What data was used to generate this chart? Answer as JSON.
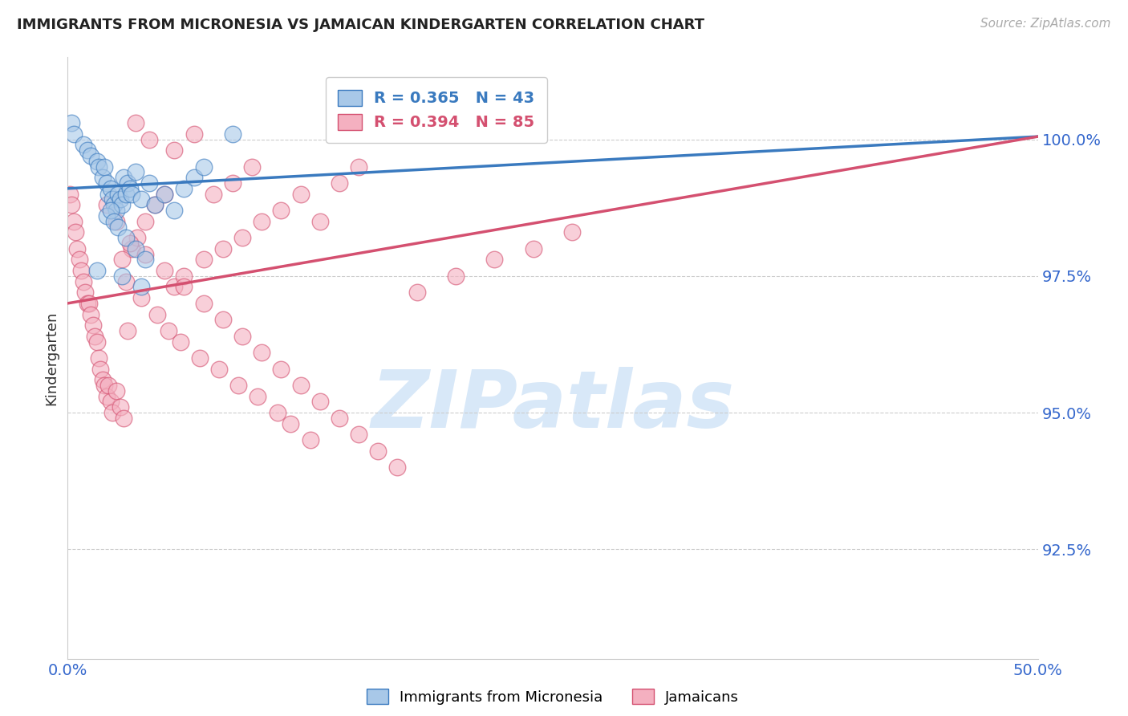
{
  "title": "IMMIGRANTS FROM MICRONESIA VS JAMAICAN KINDERGARTEN CORRELATION CHART",
  "source_text": "Source: ZipAtlas.com",
  "xlabel_blue": "Immigrants from Micronesia",
  "xlabel_pink": "Jamaicans",
  "ylabel": "Kindergarten",
  "xmin": 0.0,
  "xmax": 50.0,
  "ymin": 90.5,
  "ymax": 101.5,
  "yticks": [
    92.5,
    95.0,
    97.5,
    100.0
  ],
  "ytick_labels": [
    "92.5%",
    "95.0%",
    "97.5%",
    "100.0%"
  ],
  "xtick_labels": [
    "0.0%",
    "50.0%"
  ],
  "R_blue": 0.365,
  "N_blue": 43,
  "R_pink": 0.394,
  "N_pink": 85,
  "color_blue": "#a8c8e8",
  "color_pink": "#f4b0c0",
  "line_color_blue": "#3a7abf",
  "line_color_pink": "#d45070",
  "watermark_text": "ZIPatlas",
  "watermark_color": "#d8e8f8",
  "blue_line_y0": 99.1,
  "blue_line_y1": 100.05,
  "pink_line_y0": 97.0,
  "pink_line_y1": 100.05,
  "blue_x": [
    0.2,
    0.3,
    0.8,
    1.0,
    1.2,
    1.5,
    1.6,
    1.8,
    1.9,
    2.0,
    2.1,
    2.2,
    2.3,
    2.4,
    2.5,
    2.6,
    2.7,
    2.8,
    2.9,
    3.0,
    3.1,
    3.2,
    3.3,
    3.5,
    3.8,
    4.2,
    4.5,
    5.0,
    5.5,
    6.0,
    6.5,
    7.0,
    8.5,
    2.0,
    2.2,
    2.4,
    2.6,
    3.0,
    3.5,
    4.0,
    1.5,
    2.8,
    3.8
  ],
  "blue_y": [
    100.3,
    100.1,
    99.9,
    99.8,
    99.7,
    99.6,
    99.5,
    99.3,
    99.5,
    99.2,
    99.0,
    99.1,
    98.9,
    98.8,
    98.7,
    99.0,
    98.9,
    98.8,
    99.3,
    99.0,
    99.2,
    99.1,
    99.0,
    99.4,
    98.9,
    99.2,
    98.8,
    99.0,
    98.7,
    99.1,
    99.3,
    99.5,
    100.1,
    98.6,
    98.7,
    98.5,
    98.4,
    98.2,
    98.0,
    97.8,
    97.6,
    97.5,
    97.3
  ],
  "pink_x": [
    0.1,
    0.2,
    0.3,
    0.4,
    0.5,
    0.6,
    0.7,
    0.8,
    0.9,
    1.0,
    1.1,
    1.2,
    1.3,
    1.4,
    1.5,
    1.6,
    1.7,
    1.8,
    1.9,
    2.0,
    2.1,
    2.2,
    2.3,
    2.5,
    2.7,
    2.9,
    3.1,
    3.3,
    3.6,
    4.0,
    4.5,
    5.0,
    5.5,
    6.0,
    7.0,
    8.0,
    9.0,
    10.0,
    11.0,
    12.0,
    13.0,
    14.0,
    15.0,
    7.5,
    8.5,
    9.5,
    5.5,
    6.5,
    3.5,
    4.2,
    2.8,
    3.0,
    3.8,
    4.6,
    5.2,
    5.8,
    6.8,
    7.8,
    8.8,
    9.8,
    10.8,
    11.5,
    12.5,
    2.0,
    2.5,
    3.2,
    4.0,
    5.0,
    6.0,
    7.0,
    8.0,
    9.0,
    10.0,
    11.0,
    12.0,
    13.0,
    14.0,
    15.0,
    16.0,
    17.0,
    18.0,
    20.0,
    22.0,
    24.0,
    26.0
  ],
  "pink_y": [
    99.0,
    98.8,
    98.5,
    98.3,
    98.0,
    97.8,
    97.6,
    97.4,
    97.2,
    97.0,
    97.0,
    96.8,
    96.6,
    96.4,
    96.3,
    96.0,
    95.8,
    95.6,
    95.5,
    95.3,
    95.5,
    95.2,
    95.0,
    95.4,
    95.1,
    94.9,
    96.5,
    98.0,
    98.2,
    98.5,
    98.8,
    99.0,
    97.3,
    97.5,
    97.8,
    98.0,
    98.2,
    98.5,
    98.7,
    99.0,
    98.5,
    99.2,
    99.5,
    99.0,
    99.2,
    99.5,
    99.8,
    100.1,
    100.3,
    100.0,
    97.8,
    97.4,
    97.1,
    96.8,
    96.5,
    96.3,
    96.0,
    95.8,
    95.5,
    95.3,
    95.0,
    94.8,
    94.5,
    98.8,
    98.5,
    98.1,
    97.9,
    97.6,
    97.3,
    97.0,
    96.7,
    96.4,
    96.1,
    95.8,
    95.5,
    95.2,
    94.9,
    94.6,
    94.3,
    94.0,
    97.2,
    97.5,
    97.8,
    98.0,
    98.3
  ]
}
